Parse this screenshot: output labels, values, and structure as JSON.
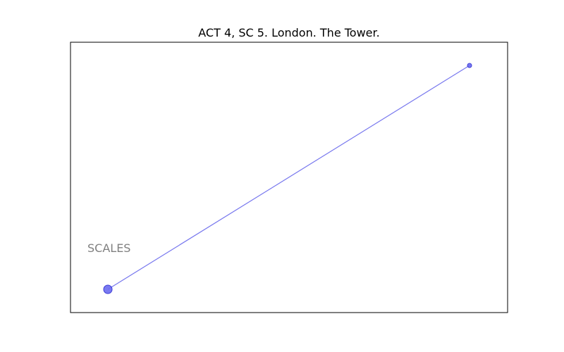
{
  "figure": {
    "title": "ACT 4, SC 5. London. The Tower."
  },
  "colors": {
    "edge": "#7777ee",
    "node_fill": "#6b6bf0",
    "node_stroke": "#3d3dd6",
    "label": "#808080"
  },
  "diagram": {
    "nodes": [
      {
        "id": "scales",
        "label": "SCALES",
        "x": 0.0,
        "y": 0.0,
        "size": 6
      },
      {
        "id": "other",
        "label": "",
        "x": 1.0,
        "y": 1.0,
        "size": 3
      }
    ],
    "edges": [
      {
        "from": "scales",
        "to": "other"
      }
    ]
  }
}
